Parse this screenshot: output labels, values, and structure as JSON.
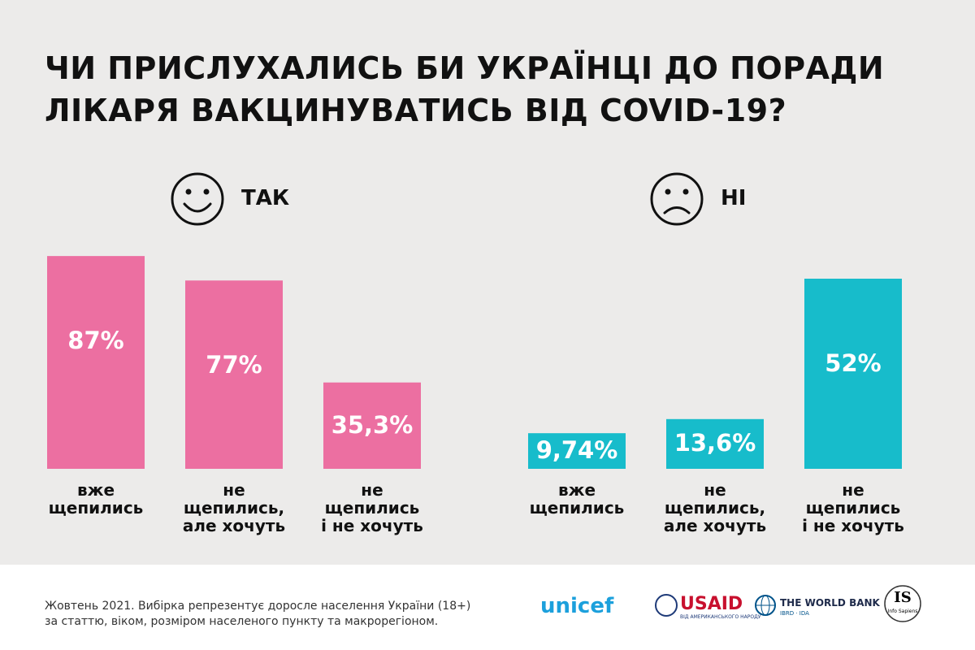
{
  "title": "ЧИ ПРИСЛУХАЛИСЬ БИ УКРАЇНЦІ ДО ПОРАДИ\nЛІКАРЯ ВАКЦИНУВАТИСЬ ВІД COVID-19?",
  "chart_data": [
    {
      "type": "bar",
      "title": "ТАК",
      "mood": "happy",
      "color": "#ec6fa1",
      "categories": [
        "вже\nщепились",
        "не\nщепились,\nале хочуть",
        "не\nщепились\nі не хочуть"
      ],
      "values": [
        87,
        77,
        35.3
      ],
      "value_labels": [
        "87%",
        "77%",
        "35,3%"
      ]
    },
    {
      "type": "bar",
      "title": "НІ",
      "mood": "sad",
      "color": "#17bccb",
      "categories": [
        "вже\nщепились",
        "не\nщепились,\nале хочуть",
        "не\nщепились\nі не хочуть"
      ],
      "values": [
        9.74,
        13.6,
        52
      ],
      "value_labels": [
        "9,74%",
        "13,6%",
        "52%"
      ]
    }
  ],
  "footer": {
    "note": "Жовтень 2021. Вибірка репрезентує доросле населення України (18+)\nза статтю, віком, розміром населеного пункту та макрорегіоном.",
    "logos": {
      "unicef": "unicef",
      "usaid": "USAID",
      "usaid_sub": "ВІД АМЕРИКАНСЬКОГО НАРОДУ",
      "worldbank": "THE WORLD BANK",
      "worldbank_sub": "IBRD · IDA",
      "is": "IS",
      "is_sub": "Info Sapiens"
    }
  }
}
